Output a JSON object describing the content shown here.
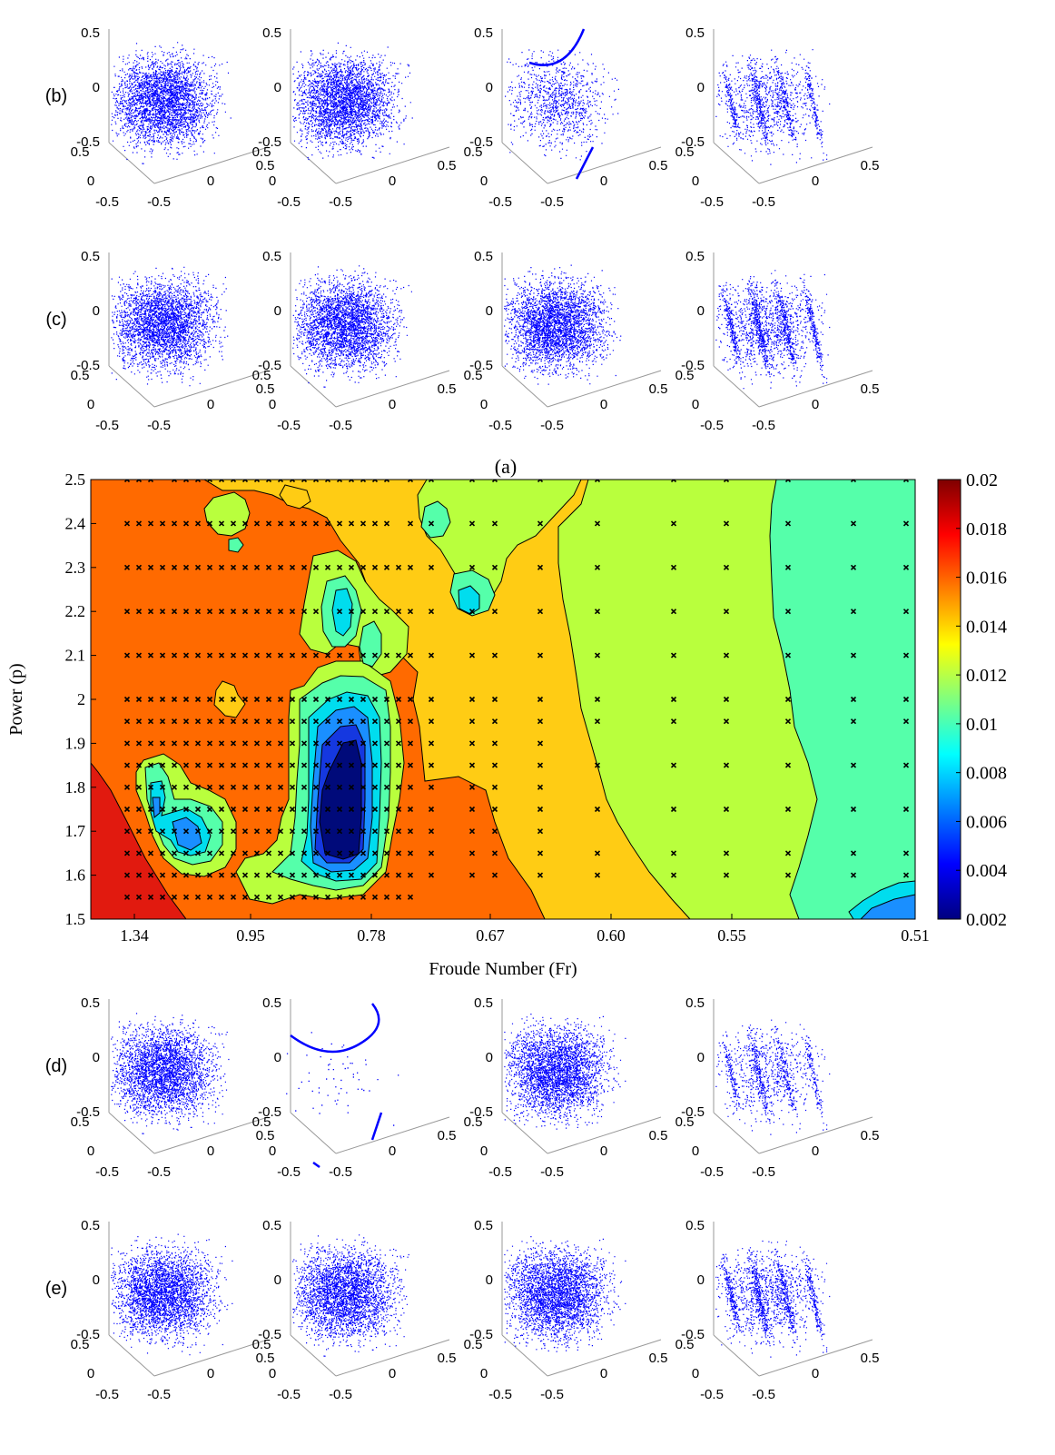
{
  "figure": {
    "panel_labels": {
      "a": "(a)",
      "b": "(b)",
      "c": "(c)",
      "d": "(d)",
      "e": "(e)"
    },
    "scatter_ticks": {
      "z": [
        "0.5",
        "0",
        "-0.5"
      ],
      "x": [
        "0.5",
        "0",
        "-0.5"
      ],
      "y": [
        "0.5",
        "0",
        "-0.5"
      ]
    },
    "scatter_color": "#0000ff",
    "scatter_rows": [
      {
        "label": "(b)",
        "panels": [
          {
            "pattern": "cloud"
          },
          {
            "pattern": "cloud"
          },
          {
            "pattern": "sparse-filaments"
          },
          {
            "pattern": "sheets"
          }
        ]
      },
      {
        "label": "(c)",
        "panels": [
          {
            "pattern": "cloud"
          },
          {
            "pattern": "cloud"
          },
          {
            "pattern": "cloud"
          },
          {
            "pattern": "sheets"
          }
        ]
      },
      {
        "label": "(d)",
        "panels": [
          {
            "pattern": "cloud"
          },
          {
            "pattern": "filaments-only"
          },
          {
            "pattern": "cloud"
          },
          {
            "pattern": "sheets"
          }
        ]
      },
      {
        "label": "(e)",
        "panels": [
          {
            "pattern": "cloud"
          },
          {
            "pattern": "cloud"
          },
          {
            "pattern": "cloud"
          },
          {
            "pattern": "sheets"
          }
        ]
      }
    ]
  },
  "chart_data": {
    "type": "contour",
    "title": "(a)",
    "xlabel": "Froude Number (Fr)",
    "ylabel": "Power (p)",
    "x_tick_labels": [
      "1.34",
      "0.95",
      "0.78",
      "0.67",
      "0.60",
      "0.55",
      "0.51"
    ],
    "y_tick_labels": [
      "1.5",
      "1.6",
      "1.7",
      "1.8",
      "1.9",
      "2",
      "2.1",
      "2.2",
      "2.3",
      "2.4",
      "2.5"
    ],
    "ylim": [
      1.5,
      2.5
    ],
    "colorbar": {
      "range": [
        0.002,
        0.02
      ],
      "tick_labels": [
        "0.002",
        "0.004",
        "0.006",
        "0.008",
        "0.01",
        "0.012",
        "0.014",
        "0.016",
        "0.018",
        "0.02"
      ],
      "colormap": "jet"
    },
    "contour_levels": [
      0.002,
      0.004,
      0.006,
      0.008,
      0.01,
      0.012,
      0.014,
      0.016,
      0.018
    ],
    "regions": [
      {
        "level": 0.016,
        "color": "#ff6a00"
      },
      {
        "level": 0.018,
        "color": "#e11a0f"
      },
      {
        "level": 0.014,
        "color": "#ffcc14"
      },
      {
        "level": 0.012,
        "color": "#b9ff3d"
      },
      {
        "level": 0.01,
        "color": "#55ffaa"
      },
      {
        "level": 0.008,
        "color": "#00ddee"
      },
      {
        "level": 0.006,
        "color": "#1a8fff"
      },
      {
        "level": 0.004,
        "color": "#1538e0"
      },
      {
        "level": 0.002,
        "color": "#000a7a"
      }
    ],
    "marker": "x",
    "sample_points_shown": true
  }
}
